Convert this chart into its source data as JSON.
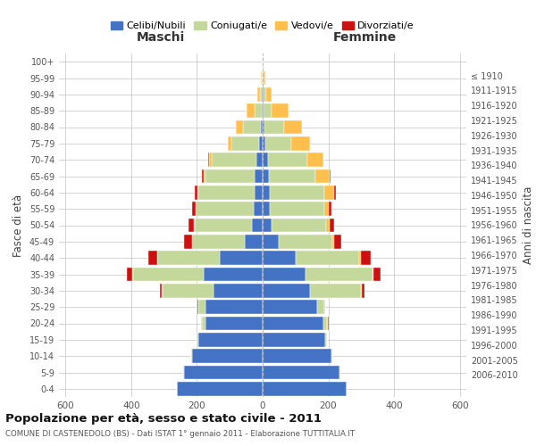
{
  "age_groups": [
    "0-4",
    "5-9",
    "10-14",
    "15-19",
    "20-24",
    "25-29",
    "30-34",
    "35-39",
    "40-44",
    "45-49",
    "50-54",
    "55-59",
    "60-64",
    "65-69",
    "70-74",
    "75-79",
    "80-84",
    "85-89",
    "90-94",
    "95-99",
    "100+"
  ],
  "birth_years": [
    "2006-2010",
    "2001-2005",
    "1996-2000",
    "1991-1995",
    "1986-1990",
    "1981-1985",
    "1976-1980",
    "1971-1975",
    "1966-1970",
    "1961-1965",
    "1956-1960",
    "1951-1955",
    "1946-1950",
    "1941-1945",
    "1936-1940",
    "1931-1935",
    "1926-1930",
    "1921-1925",
    "1916-1920",
    "1911-1915",
    "≤ 1910"
  ],
  "males": {
    "celibi": [
      260,
      240,
      215,
      195,
      175,
      175,
      150,
      180,
      130,
      55,
      32,
      28,
      25,
      25,
      20,
      10,
      6,
      4,
      2,
      1,
      0
    ],
    "coniugati": [
      1,
      1,
      2,
      5,
      10,
      20,
      155,
      215,
      190,
      160,
      175,
      175,
      170,
      150,
      135,
      85,
      55,
      20,
      5,
      2,
      0
    ],
    "vedovi": [
      0,
      0,
      0,
      0,
      2,
      2,
      1,
      1,
      1,
      1,
      2,
      2,
      3,
      5,
      8,
      10,
      20,
      25,
      8,
      2,
      0
    ],
    "divorziati": [
      0,
      0,
      0,
      0,
      1,
      2,
      8,
      18,
      28,
      22,
      18,
      10,
      8,
      5,
      3,
      0,
      0,
      0,
      0,
      0,
      0
    ]
  },
  "females": {
    "nubili": [
      255,
      235,
      210,
      190,
      185,
      165,
      145,
      130,
      100,
      48,
      28,
      22,
      22,
      20,
      15,
      8,
      5,
      3,
      2,
      1,
      0
    ],
    "coniugate": [
      0,
      1,
      2,
      5,
      12,
      22,
      155,
      205,
      195,
      165,
      165,
      165,
      165,
      140,
      120,
      80,
      60,
      25,
      8,
      2,
      0
    ],
    "vedove": [
      0,
      0,
      0,
      0,
      2,
      2,
      2,
      3,
      5,
      5,
      10,
      15,
      30,
      45,
      50,
      55,
      55,
      50,
      18,
      5,
      0
    ],
    "divorziate": [
      0,
      0,
      0,
      0,
      1,
      2,
      8,
      22,
      28,
      22,
      15,
      8,
      5,
      2,
      0,
      0,
      0,
      0,
      0,
      0,
      0
    ]
  },
  "colors": {
    "celibi": "#4472C4",
    "coniugati": "#C5D89C",
    "vedovi": "#FFBF4C",
    "divorziati": "#CC1111"
  },
  "xlim": 620,
  "title": "Popolazione per età, sesso e stato civile - 2011",
  "subtitle": "COMUNE DI CASTENEDOLO (BS) - Dati ISTAT 1° gennaio 2011 - Elaborazione TUTTITALIA.IT",
  "ylabel_left": "Fasce di età",
  "ylabel_right": "Anni di nascita",
  "xlabel_left": "Maschi",
  "xlabel_right": "Femmine"
}
